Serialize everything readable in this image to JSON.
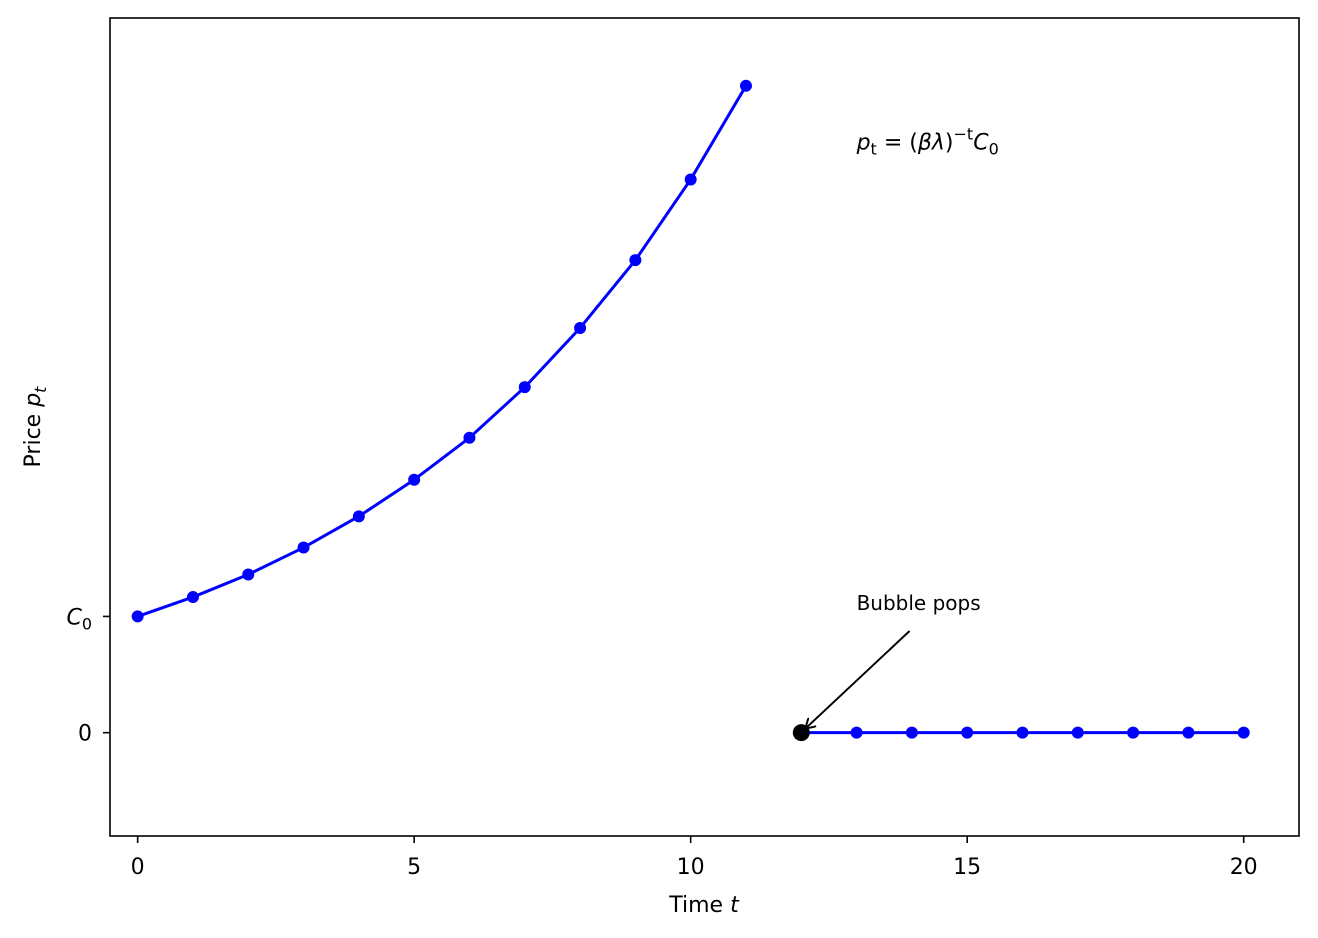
{
  "chart_data": {
    "type": "line",
    "xlabel": {
      "text": "Time ",
      "var": "t"
    },
    "ylabel": {
      "text": "Price ",
      "var": "p",
      "sub": "t"
    },
    "xlim": [
      -0.5,
      21
    ],
    "ylim": [
      -0.48,
      3.32
    ],
    "x_ticks": [
      0,
      5,
      10,
      15,
      20
    ],
    "y_ticks": [
      {
        "value": 0,
        "label": "0",
        "math": false
      },
      {
        "value": 0.54,
        "label": "C",
        "sub": "0",
        "math": true
      }
    ],
    "series": [
      {
        "color": "#0000ff",
        "x": [
          0,
          1,
          2,
          3,
          4,
          5,
          6,
          7,
          8,
          9,
          10,
          11
        ],
        "y": [
          0.54,
          0.63,
          0.735,
          0.86,
          1.005,
          1.175,
          1.37,
          1.605,
          1.88,
          2.195,
          2.57,
          3.005
        ]
      },
      {
        "color": "#0000ff",
        "x": [
          12,
          13,
          14,
          15,
          16,
          17,
          18,
          19,
          20
        ],
        "y": [
          0,
          0,
          0,
          0,
          0,
          0,
          0,
          0,
          0
        ]
      }
    ],
    "highlight_point": {
      "x": 12,
      "y": 0,
      "color": "#000000"
    },
    "annotations": [
      {
        "text": "Bubble pops",
        "x": 13,
        "y": 0.57,
        "arrow_to": {
          "x": 12,
          "y": 0
        }
      }
    ],
    "formula": {
      "x": 13,
      "y": 2.71,
      "p": "p",
      "p_sub": "t",
      "eq": " = (",
      "beta": "β",
      "lambda": "λ",
      "close": ")",
      "exp": "−t",
      "c": "C",
      "c_sub": "0"
    }
  }
}
